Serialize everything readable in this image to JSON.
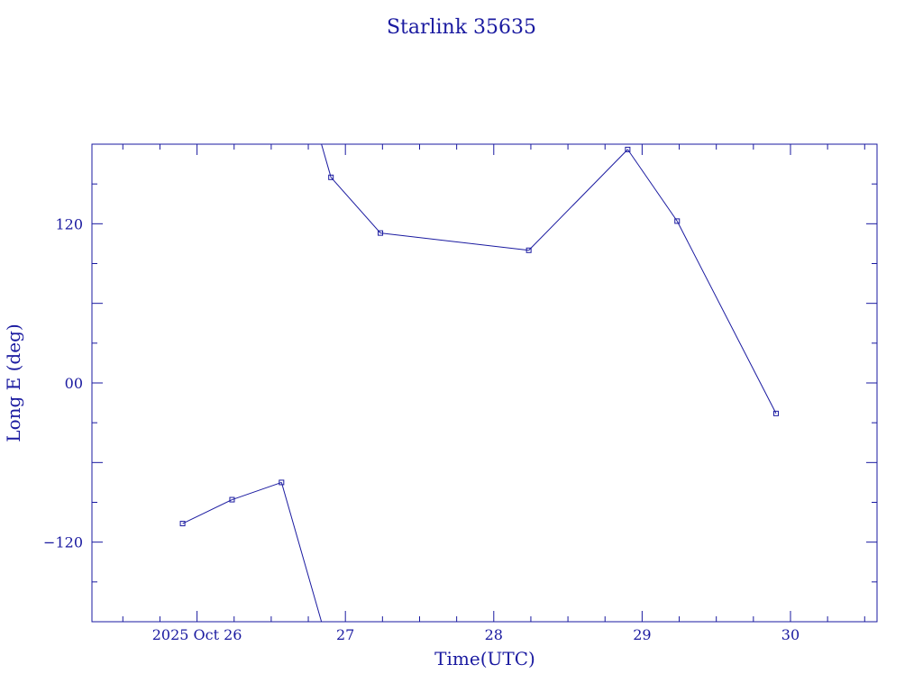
{
  "chart_data": {
    "type": "line",
    "title": "Starlink 35635",
    "xlabel": "Time(UTC)",
    "ylabel": "Long E (deg)",
    "xlim": [
      "2025-10-25T07:00",
      "2025-10-30T14:00"
    ],
    "ylim": [
      -180,
      180
    ],
    "x_ticks": [
      {
        "value": "2025-10-26T00:00",
        "label": "2025 Oct 26"
      },
      {
        "value": "2025-10-27T00:00",
        "label": "27"
      },
      {
        "value": "2025-10-28T00:00",
        "label": "28"
      },
      {
        "value": "2025-10-29T00:00",
        "label": "29"
      },
      {
        "value": "2025-10-30T00:00",
        "label": "30"
      }
    ],
    "y_ticks": [
      {
        "value": 120,
        "label": "120"
      },
      {
        "value": 0,
        "label": "00"
      },
      {
        "value": -120,
        "label": "−120"
      }
    ],
    "wrap_longitude": true,
    "grid": false,
    "series": [
      {
        "color": "#1a1aa0",
        "points": [
          {
            "x": "2025-10-25T21:40",
            "y": -106
          },
          {
            "x": "2025-10-26T05:40",
            "y": -88
          },
          {
            "x": "2025-10-26T13:40",
            "y": -75
          },
          {
            "x": "2025-10-26T21:40",
            "y": 155
          },
          {
            "x": "2025-10-27T05:40",
            "y": 113
          },
          {
            "x": "2025-10-28T05:40",
            "y": 100
          },
          {
            "x": "2025-10-28T21:40",
            "y": 176
          },
          {
            "x": "2025-10-29T05:40",
            "y": 122
          },
          {
            "x": "2025-10-29T21:40",
            "y": -23
          }
        ]
      }
    ]
  }
}
